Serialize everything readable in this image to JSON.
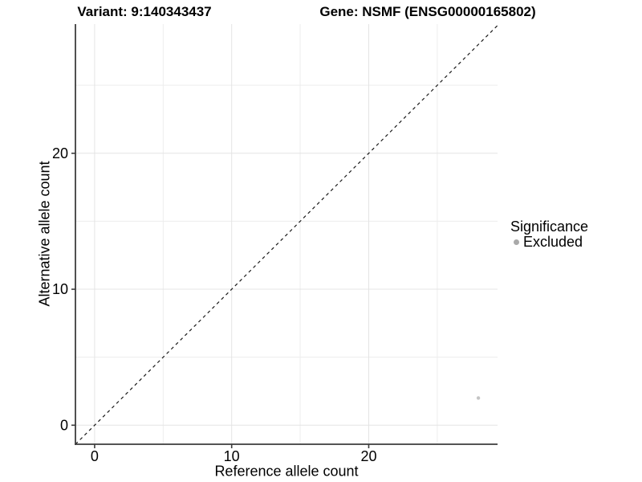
{
  "header": {
    "variant_title": "Variant: 9:140343437",
    "gene_title": "Gene: NSMF (ENSG00000165802)"
  },
  "legend": {
    "title": "Significance",
    "items": [
      {
        "label": "Excluded",
        "color": "#a9a9a9"
      }
    ]
  },
  "chart_data": {
    "type": "scatter",
    "xlabel": "Reference allele count",
    "ylabel": "Alternative allele count",
    "xlim": [
      -1.4,
      29.4
    ],
    "ylim": [
      -1.4,
      29.5
    ],
    "x_major_ticks": [
      0,
      10,
      20
    ],
    "y_major_ticks": [
      0,
      10,
      20
    ],
    "x_minor_gridlines": [
      5,
      15,
      25
    ],
    "y_minor_gridlines": [
      5,
      15,
      25
    ],
    "grid": "on",
    "legend_position": "right",
    "reference_line": {
      "type": "identity",
      "style": "dashed",
      "color": "#1a1a1a"
    },
    "series": [
      {
        "name": "Excluded",
        "color": "#c4c4c4",
        "points": [
          {
            "x": 28,
            "y": 2
          }
        ]
      }
    ]
  },
  "style_colors": {
    "axis_line": "#3c3c3c",
    "major_gridline": "#e4e4e4",
    "minor_gridline": "#ededed",
    "tick_label": "#000000"
  }
}
